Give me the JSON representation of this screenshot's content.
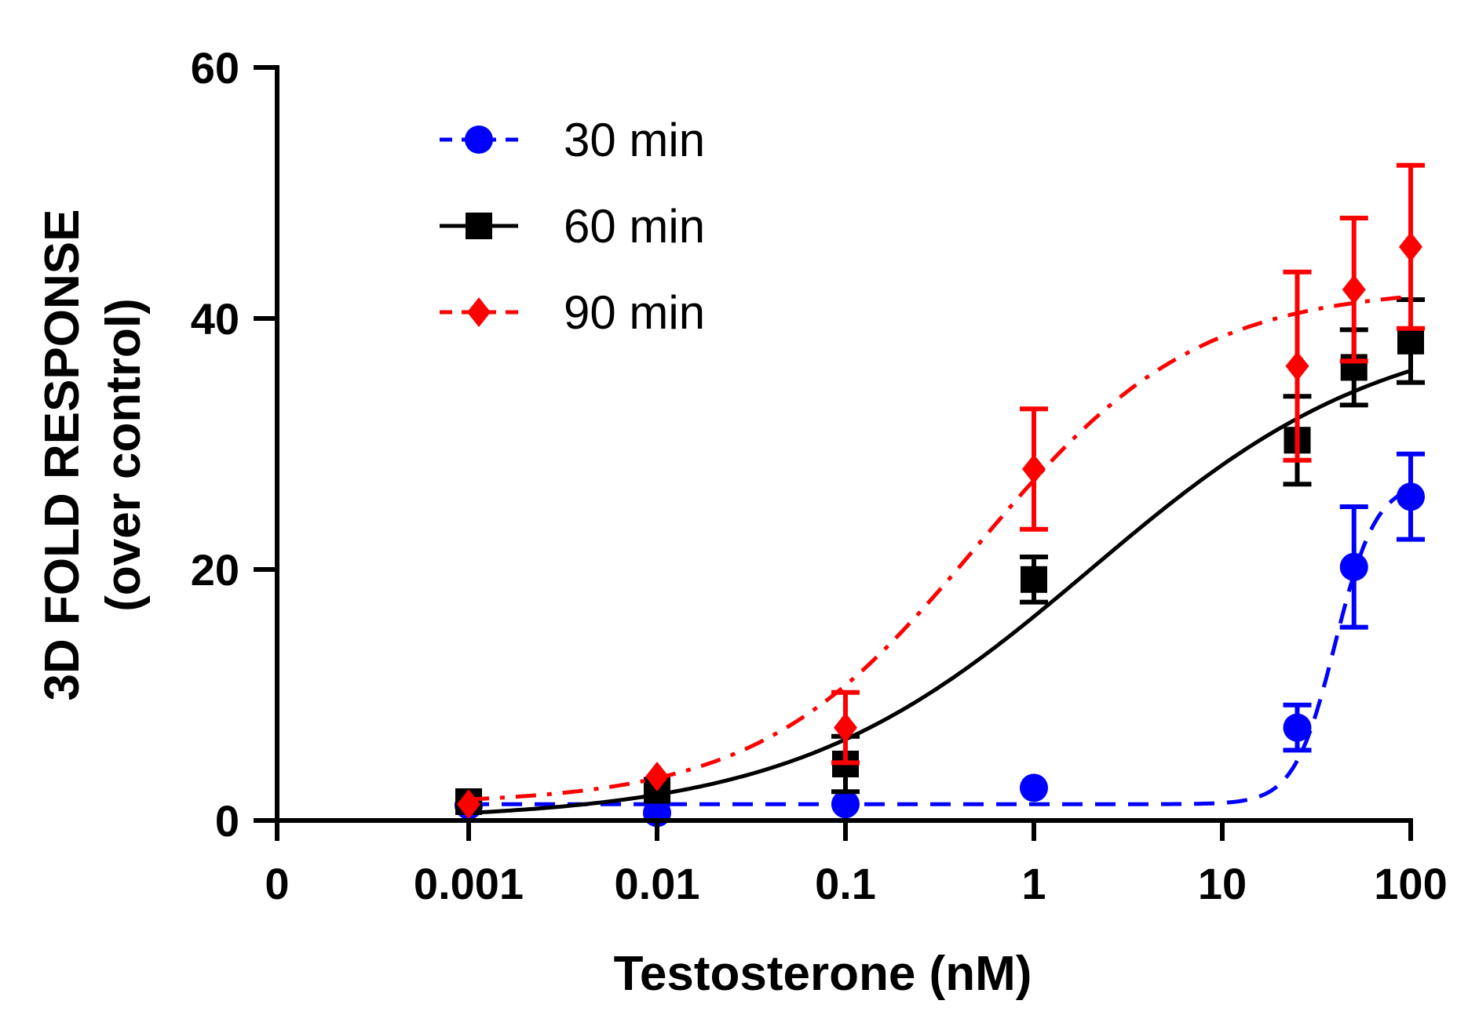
{
  "chart_data": {
    "type": "line",
    "title": "",
    "xlabel": "Testosterone (nM)",
    "ylabel_line1": "3D FOLD RESPONSE",
    "ylabel_line2": "(over control)",
    "x_scale": "log",
    "x_ticks": [
      {
        "value": 0,
        "label": "0"
      },
      {
        "value": 0.001,
        "label": "0.001"
      },
      {
        "value": 0.01,
        "label": "0.01"
      },
      {
        "value": 0.1,
        "label": "0.1"
      },
      {
        "value": 1,
        "label": "1"
      },
      {
        "value": 10,
        "label": "10"
      },
      {
        "value": 100,
        "label": "100"
      }
    ],
    "y_ticks": [
      {
        "value": 0,
        "label": "0"
      },
      {
        "value": 20,
        "label": "20"
      },
      {
        "value": 40,
        "label": "40"
      },
      {
        "value": 60,
        "label": "60"
      }
    ],
    "ylim": [
      0,
      60
    ],
    "grid": false,
    "legend_position": "top-left",
    "x": [
      0.001,
      0.01,
      0.1,
      1,
      25,
      50,
      100
    ],
    "series": [
      {
        "name": "30 min",
        "color": "#0000ff",
        "marker": "circle",
        "line_style": "dashed",
        "values": [
          1.2,
          0.6,
          1.3,
          2.6,
          7.4,
          20.2,
          25.8
        ],
        "errors": [
          0,
          0,
          0,
          0,
          1.8,
          4.8,
          3.4
        ],
        "fit": {
          "bottom": 1.3,
          "top": 27.0,
          "log_ec50": 1.6,
          "hill": 4.0
        }
      },
      {
        "name": "60 min",
        "color": "#000000",
        "marker": "square",
        "line_style": "solid",
        "values": [
          1.5,
          2.4,
          4.5,
          19.2,
          30.3,
          36.1,
          38.2
        ],
        "errors": [
          0,
          0,
          2.2,
          1.8,
          3.5,
          3.0,
          3.3
        ],
        "fit": {
          "bottom": 0.0,
          "top": 40.0,
          "log_ec50": 0.3,
          "hill": 0.55
        }
      },
      {
        "name": "90 min",
        "color": "#ff0000",
        "marker": "diamond",
        "line_style": "dash-dot",
        "values": [
          1.3,
          3.5,
          7.4,
          28.0,
          36.2,
          42.3,
          45.7
        ],
        "errors": [
          0,
          0,
          2.8,
          4.8,
          7.5,
          5.7,
          6.5
        ],
        "fit": {
          "bottom": 1.3,
          "top": 42.5,
          "log_ec50": -0.3,
          "hill": 0.75
        }
      }
    ]
  }
}
